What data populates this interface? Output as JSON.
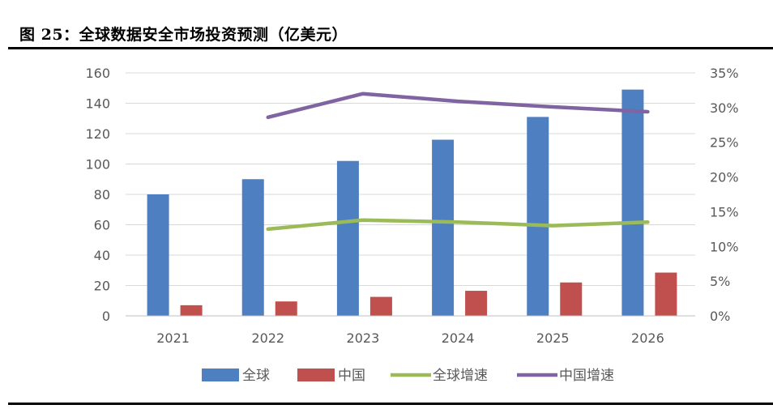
{
  "figure_title": "图 25：全球数据安全市场投资预测（亿美元）",
  "colors": {
    "global_bar": "#4E7FC0",
    "china_bar": "#C0504D",
    "global_growth": "#9BBB59",
    "china_growth": "#8064A2",
    "grid": "#D9D9D9"
  },
  "chart_data": {
    "type": "bar",
    "categories": [
      "2021",
      "2022",
      "2023",
      "2024",
      "2025",
      "2026"
    ],
    "series": [
      {
        "name": "全球",
        "type": "bar",
        "axis": "left",
        "values": [
          80,
          90,
          102,
          116,
          131,
          149
        ]
      },
      {
        "name": "中国",
        "type": "bar",
        "axis": "left",
        "values": [
          7,
          9.5,
          12.5,
          16.5,
          22,
          28.5
        ]
      },
      {
        "name": "全球增速",
        "type": "line",
        "axis": "right",
        "values": [
          null,
          0.125,
          0.138,
          0.135,
          0.13,
          0.135
        ]
      },
      {
        "name": "中国增速",
        "type": "line",
        "axis": "right",
        "values": [
          null,
          0.286,
          0.32,
          0.309,
          0.301,
          0.294
        ]
      }
    ],
    "y_left": {
      "ylim": [
        0,
        160
      ],
      "ticks": [
        "0",
        "20",
        "40",
        "60",
        "80",
        "100",
        "120",
        "140",
        "160"
      ]
    },
    "y_right": {
      "ylim": [
        0,
        0.35
      ],
      "ticks": [
        "0%",
        "5%",
        "10%",
        "15%",
        "20%",
        "25%",
        "30%",
        "35%"
      ]
    },
    "grid": true,
    "legend_position": "bottom"
  }
}
